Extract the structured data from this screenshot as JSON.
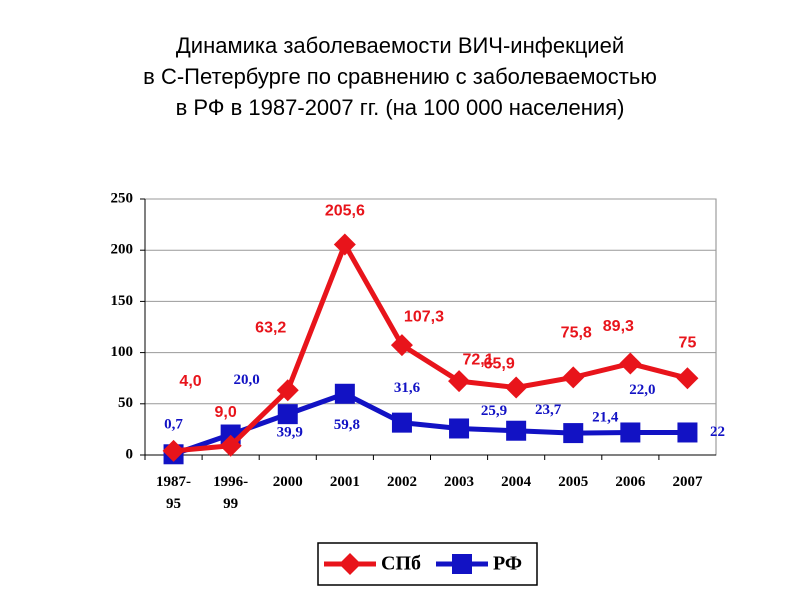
{
  "chart_data": {
    "type": "line",
    "title_lines": [
      "Динамика заболеваемости ВИЧ-инфекцией",
      "в С-Петербурге по сравнению с заболеваемостью",
      "в РФ в 1987-2007 гг. (на 100 000 населения)"
    ],
    "categories": [
      "1987-95",
      "1996-99",
      "2000",
      "2001",
      "2002",
      "2003",
      "2004",
      "2005",
      "2006",
      "2007"
    ],
    "series": [
      {
        "name": "СПб",
        "color": "#e8141b",
        "marker": "diamond",
        "values": [
          4.0,
          9.0,
          63.2,
          205.6,
          107.3,
          72.1,
          65.9,
          75.8,
          89.3,
          75
        ],
        "value_labels": [
          "4,0",
          "9,0",
          "63,2",
          "205,6",
          "107,3",
          "72,1",
          "65,9",
          "75,8",
          "89,3",
          "75"
        ]
      },
      {
        "name": "РФ",
        "color": "#1212c4",
        "marker": "square",
        "values": [
          0.7,
          20.0,
          39.9,
          59.8,
          31.6,
          25.9,
          23.7,
          21.4,
          22.0,
          22
        ],
        "value_labels": [
          "0,7",
          "20,0",
          "39,9",
          "59,8",
          "31,6",
          "25,9",
          "23,7",
          "21,4",
          "22,0",
          "22"
        ]
      }
    ],
    "ylim": [
      0,
      250
    ],
    "yticks": [
      0,
      50,
      100,
      150,
      200,
      250
    ],
    "grid": true,
    "legend": "bottom"
  }
}
